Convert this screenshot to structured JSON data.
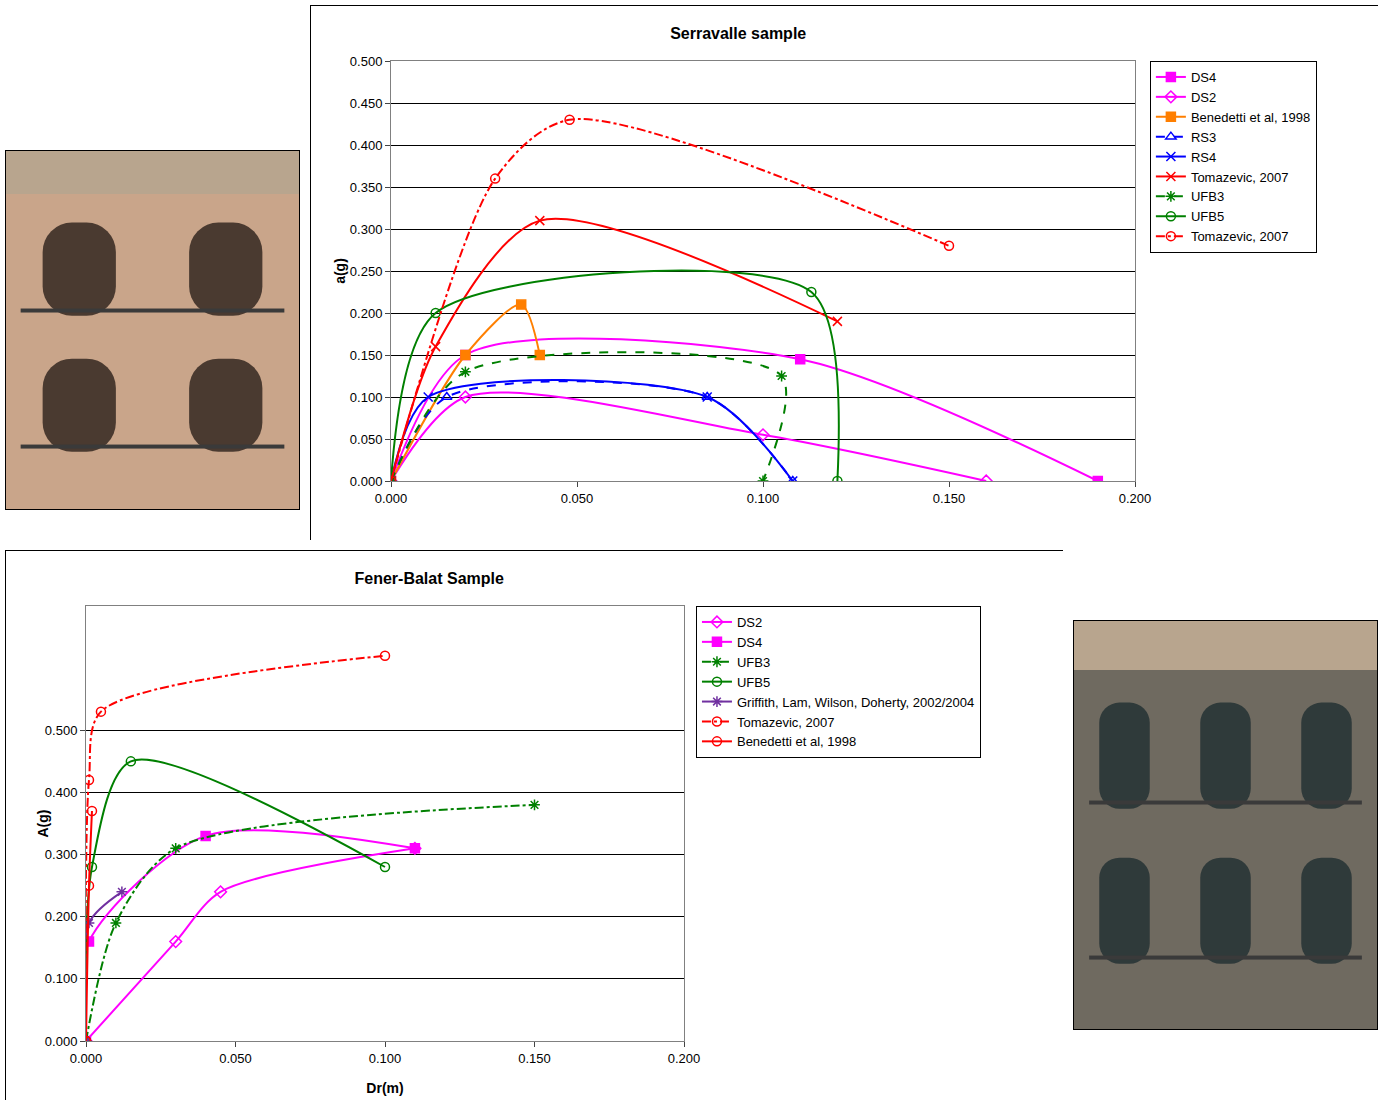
{
  "chart_data": [
    {
      "type": "line",
      "title": "Serravalle sample",
      "y_label": "a(g)",
      "xlim": [
        0,
        0.2
      ],
      "xticks": [
        {
          "value": 0,
          "label": "0.000"
        },
        {
          "value": 0.05,
          "label": "0.050"
        },
        {
          "value": 0.1,
          "label": "0.100"
        },
        {
          "value": 0.15,
          "label": "0.150"
        },
        {
          "value": 0.2,
          "label": "0.200"
        }
      ],
      "ylim": [
        0,
        0.5
      ],
      "yticks": [
        {
          "value": 0,
          "label": "0.000"
        },
        {
          "value": 0.05,
          "label": "0.050"
        },
        {
          "value": 0.1,
          "label": "0.100"
        },
        {
          "value": 0.15,
          "label": "0.150"
        },
        {
          "value": 0.2,
          "label": "0.200"
        },
        {
          "value": 0.25,
          "label": "0.250"
        },
        {
          "value": 0.3,
          "label": "0.300"
        },
        {
          "value": 0.35,
          "label": "0.350"
        },
        {
          "value": 0.4,
          "label": "0.400"
        },
        {
          "value": 0.45,
          "label": "0.450"
        },
        {
          "value": 0.5,
          "label": "0.500"
        }
      ],
      "grid": "y",
      "legend": "right",
      "series": [
        {
          "name": "DS4",
          "color": "#ff00ff",
          "marker": "square",
          "line_style": "solid",
          "x": [
            0,
            0.02,
            0.11,
            0.19
          ],
          "values": [
            0,
            0.15,
            0.145,
            0
          ]
        },
        {
          "name": "DS2",
          "color": "#ff00ff",
          "marker": "diamond",
          "line_style": "solid",
          "x": [
            0,
            0.02,
            0.1,
            0.16
          ],
          "values": [
            0,
            0.1,
            0.055,
            0
          ]
        },
        {
          "name": "Benedetti et al, 1998",
          "color": "#ff7f00",
          "marker": "square",
          "line_style": "solid",
          "x": [
            0,
            0.02,
            0.035,
            0.04
          ],
          "values": [
            0,
            0.15,
            0.21,
            0.15
          ]
        },
        {
          "name": "RS3",
          "color": "#0000ff",
          "marker": "triangle",
          "line_style": "dash",
          "x": [
            0,
            0.015,
            0.085,
            0.108
          ],
          "values": [
            0,
            0.1,
            0.1,
            0
          ]
        },
        {
          "name": "RS4",
          "color": "#0000ff",
          "marker": "x",
          "line_style": "solid",
          "x": [
            0,
            0.01,
            0.085,
            0.108
          ],
          "values": [
            0,
            0.1,
            0.1,
            0
          ]
        },
        {
          "name": "Tomazevic, 2007",
          "color": "#ff0000",
          "marker": "x",
          "line_style": "solid",
          "x": [
            0,
            0.012,
            0.04,
            0.12
          ],
          "values": [
            0,
            0.16,
            0.31,
            0.19
          ]
        },
        {
          "name": "UFB3",
          "color": "#008000",
          "marker": "star",
          "line_style": "dash",
          "x": [
            0,
            0.02,
            0.105,
            0.1
          ],
          "values": [
            0,
            0.13,
            0.125,
            0
          ]
        },
        {
          "name": "UFB5",
          "color": "#008000",
          "marker": "circle",
          "line_style": "solid",
          "x": [
            0,
            0.012,
            0.113,
            0.12
          ],
          "values": [
            0,
            0.2,
            0.225,
            0
          ]
        },
        {
          "name": "Tomazevic, 2007",
          "color": "#ff0000",
          "marker": "circle",
          "line_style": "dashdot",
          "x": [
            0,
            0.028,
            0.048,
            0.15
          ],
          "values": [
            0,
            0.36,
            0.43,
            0.28
          ]
        }
      ]
    },
    {
      "type": "line",
      "title": "Fener-Balat Sample",
      "x_label": "Dr(m)",
      "y_label": "A(g)",
      "xlim": [
        0,
        0.2
      ],
      "xticks": [
        {
          "value": 0,
          "label": "0.000"
        },
        {
          "value": 0.05,
          "label": "0.050"
        },
        {
          "value": 0.1,
          "label": "0.100"
        },
        {
          "value": 0.15,
          "label": "0.150"
        },
        {
          "value": 0.2,
          "label": "0.200"
        }
      ],
      "ylim": [
        0,
        0.7
      ],
      "yticks": [
        {
          "value": 0,
          "label": "0.000"
        },
        {
          "value": 0.1,
          "label": "0.100"
        },
        {
          "value": 0.2,
          "label": "0.200"
        },
        {
          "value": 0.3,
          "label": "0.300"
        },
        {
          "value": 0.4,
          "label": "0.400"
        },
        {
          "value": 0.5,
          "label": "0.500"
        }
      ],
      "grid": "y",
      "legend": "right",
      "series": [
        {
          "name": "DS2",
          "color": "#ff00ff",
          "marker": "diamond",
          "line_style": "solid",
          "x": [
            0,
            0.03,
            0.045,
            0.11
          ],
          "values": [
            0,
            0.16,
            0.24,
            0.31
          ]
        },
        {
          "name": "DS4",
          "color": "#ff00ff",
          "marker": "square",
          "line_style": "solid",
          "x": [
            0,
            0.001,
            0.04,
            0.11
          ],
          "values": [
            0,
            0.16,
            0.33,
            0.31
          ]
        },
        {
          "name": "UFB3",
          "color": "#008000",
          "marker": "star",
          "line_style": "dashdot",
          "x": [
            0,
            0.01,
            0.03,
            0.15
          ],
          "values": [
            0,
            0.19,
            0.31,
            0.38
          ]
        },
        {
          "name": "UFB5",
          "color": "#008000",
          "marker": "circle",
          "line_style": "solid",
          "x": [
            0,
            0.002,
            0.015,
            0.1
          ],
          "values": [
            0,
            0.28,
            0.45,
            0.28
          ]
        },
        {
          "name": "Griffith, Lam, Wilson, Doherty, 2002/2004",
          "color": "#7030a0",
          "marker": "star",
          "line_style": "solid",
          "x": [
            0,
            0.001,
            0.012
          ],
          "values": [
            0,
            0.19,
            0.24
          ]
        },
        {
          "name": "Tomazevic, 2007",
          "color": "#ff0000",
          "marker": "circle",
          "line_style": "dashdot",
          "x": [
            0,
            0.001,
            0.005,
            0.1
          ],
          "values": [
            0,
            0.42,
            0.53,
            0.62
          ]
        },
        {
          "name": "Benedetti et al, 1998",
          "color": "#ff0000",
          "marker": "circle",
          "line_style": "solid",
          "x": [
            0,
            0.001,
            0.002
          ],
          "values": [
            0,
            0.25,
            0.37
          ]
        }
      ]
    }
  ]
}
